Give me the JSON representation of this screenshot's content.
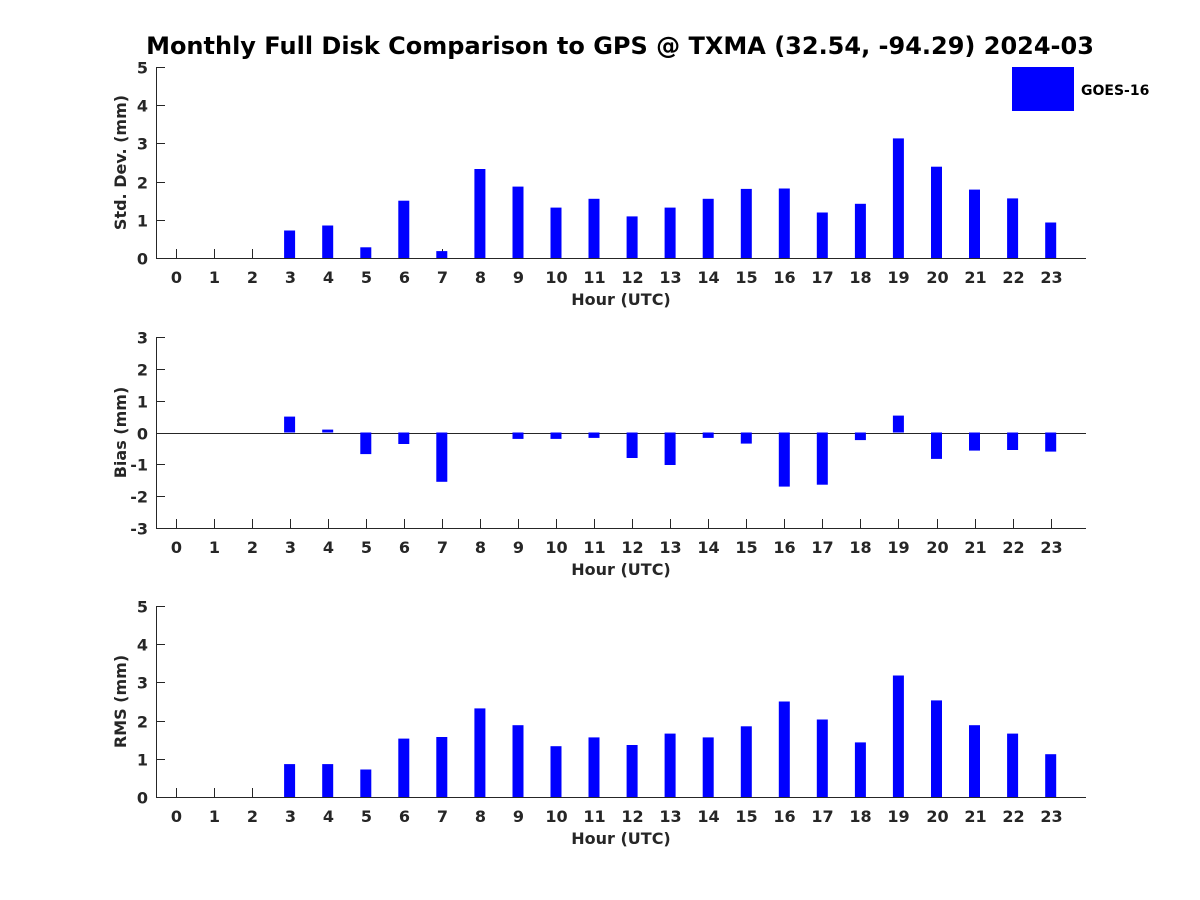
{
  "title": "Monthly Full Disk Comparison to GPS @ TXMA (32.54, -94.29) 2024-03",
  "legend": {
    "label": "GOES-16",
    "placement": "top-right",
    "color": "#0000ff"
  },
  "bar_color": "#0000ff",
  "chart_data": [
    {
      "type": "bar",
      "xlabel": "Hour (UTC)",
      "ylabel": "Std. Dev. (mm)",
      "ylim": [
        0,
        5
      ],
      "yticks": [
        0,
        1,
        2,
        3,
        4,
        5
      ],
      "categories": [
        "0",
        "1",
        "2",
        "3",
        "4",
        "5",
        "6",
        "7",
        "8",
        "9",
        "10",
        "11",
        "12",
        "13",
        "14",
        "15",
        "16",
        "17",
        "18",
        "19",
        "20",
        "21",
        "22",
        "23"
      ],
      "series": [
        {
          "name": "GOES-16",
          "values": [
            0,
            0,
            0,
            0.72,
            0.85,
            0.28,
            1.5,
            0.18,
            2.33,
            1.87,
            1.32,
            1.55,
            1.09,
            1.32,
            1.55,
            1.81,
            1.82,
            1.19,
            1.42,
            3.13,
            2.39,
            1.79,
            1.56,
            0.93
          ]
        }
      ]
    },
    {
      "type": "bar",
      "xlabel": "Hour (UTC)",
      "ylabel": "Bias (mm)",
      "ylim": [
        -3,
        3
      ],
      "yticks": [
        -3,
        -2,
        -1,
        0,
        1,
        2,
        3
      ],
      "categories": [
        "0",
        "1",
        "2",
        "3",
        "4",
        "5",
        "6",
        "7",
        "8",
        "9",
        "10",
        "11",
        "12",
        "13",
        "14",
        "15",
        "16",
        "17",
        "18",
        "19",
        "20",
        "21",
        "22",
        "23"
      ],
      "series": [
        {
          "name": "GOES-16",
          "values": [
            0,
            0,
            0,
            0.5,
            0.09,
            -0.68,
            -0.36,
            -1.55,
            0,
            -0.2,
            -0.2,
            -0.17,
            -0.8,
            -1.02,
            -0.17,
            -0.35,
            -1.7,
            -1.64,
            -0.24,
            0.53,
            -0.83,
            -0.57,
            -0.55,
            -0.6
          ]
        }
      ]
    },
    {
      "type": "bar",
      "xlabel": "Hour (UTC)",
      "ylabel": "RMS (mm)",
      "ylim": [
        0,
        5
      ],
      "yticks": [
        0,
        1,
        2,
        3,
        4,
        5
      ],
      "categories": [
        "0",
        "1",
        "2",
        "3",
        "4",
        "5",
        "6",
        "7",
        "8",
        "9",
        "10",
        "11",
        "12",
        "13",
        "14",
        "15",
        "16",
        "17",
        "18",
        "19",
        "20",
        "21",
        "22",
        "23"
      ],
      "series": [
        {
          "name": "GOES-16",
          "values": [
            0,
            0,
            0,
            0.86,
            0.86,
            0.72,
            1.53,
            1.57,
            2.32,
            1.88,
            1.33,
            1.56,
            1.36,
            1.66,
            1.56,
            1.85,
            2.5,
            2.03,
            1.43,
            3.18,
            2.53,
            1.88,
            1.66,
            1.12
          ]
        }
      ]
    }
  ]
}
